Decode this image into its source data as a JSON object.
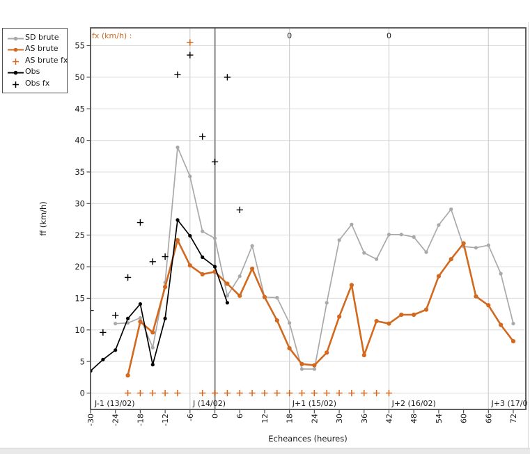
{
  "window": {
    "background": "#ffffff"
  },
  "chart_data": {
    "type": "line",
    "title": "",
    "xlabel": "Echeances (heures)",
    "ylabel": "ff (km/h)",
    "fx_header": "fx (km/h) :",
    "xlim": [
      -30,
      72
    ],
    "ylim": [
      0,
      55
    ],
    "x_ticks": [
      -30,
      -24,
      -18,
      -12,
      -6,
      0,
      6,
      12,
      18,
      24,
      30,
      36,
      42,
      48,
      54,
      60,
      66,
      72
    ],
    "y_ticks": [
      0,
      5,
      10,
      15,
      20,
      25,
      30,
      35,
      40,
      45,
      50,
      55
    ],
    "grid": "horizontal gridlines every 5; vertical separators at day boundaries; bold vertical line at 0",
    "now_line_x": 0,
    "day_separators": [
      -6,
      18,
      42,
      66
    ],
    "day_labels": [
      {
        "x": -29.0,
        "text": "J-1 (13/02)"
      },
      {
        "x": -5.3,
        "text": "J (14/02)"
      },
      {
        "x": 18.7,
        "text": "J+1 (15/02)"
      },
      {
        "x": 42.7,
        "text": "J+2 (16/02)"
      },
      {
        "x": 66.7,
        "text": "J+3 (17/0"
      }
    ],
    "annotations": [
      {
        "x": 18,
        "text": "0",
        "color": "#d2691e"
      },
      {
        "x": 42,
        "text": "0",
        "color": "#d2691e"
      }
    ],
    "series": [
      {
        "name": "SD brute",
        "type": "line-dot",
        "color": "#a9a9a9",
        "line_width": 1.7,
        "dot_radius": 2.6,
        "x": [
          -24,
          -21,
          -18,
          -15,
          -12,
          -9,
          -6,
          -3,
          0,
          3,
          6,
          9,
          12,
          15,
          18,
          21,
          24,
          27,
          30,
          33,
          36,
          39,
          42,
          45,
          48,
          51,
          54,
          57,
          60,
          63,
          66,
          69,
          72
        ],
        "y": [
          11.0,
          11.1,
          11.9,
          7.2,
          17.5,
          38.9,
          34.3,
          25.6,
          24.5,
          15.4,
          18.5,
          23.3,
          15.2,
          15.1,
          11.1,
          3.8,
          3.8,
          14.3,
          24.2,
          26.7,
          22.2,
          21.2,
          25.1,
          25.1,
          24.7,
          22.3,
          26.6,
          29.1,
          23.2,
          23.0,
          23.4,
          18.9,
          11.0
        ]
      },
      {
        "name": "AS brute",
        "type": "line-dot",
        "color": "#d2691e",
        "line_width": 2.6,
        "dot_radius": 3.1,
        "x": [
          -21,
          -18,
          -15,
          -12,
          -9,
          -6,
          -3,
          0,
          3,
          6,
          9,
          12,
          15,
          18,
          21,
          24,
          27,
          30,
          33,
          36,
          39,
          42,
          45,
          48,
          51,
          54,
          57,
          60,
          63,
          66,
          69,
          72
        ],
        "y": [
          2.8,
          11.3,
          9.6,
          16.8,
          24.2,
          20.2,
          18.8,
          19.2,
          17.3,
          15.4,
          19.7,
          15.2,
          11.5,
          7.1,
          4.6,
          4.4,
          6.4,
          12.1,
          17.1,
          6.0,
          11.4,
          11.0,
          12.4,
          12.4,
          13.2,
          18.5,
          21.2,
          23.7,
          15.3,
          13.9,
          10.8,
          8.2
        ]
      },
      {
        "name": "AS brute fx",
        "type": "plus",
        "color": "#d2691e",
        "plus_size": 4.6,
        "plus_width": 1.5,
        "x": [
          -21,
          -18,
          -15,
          -12,
          -9,
          -6,
          -3,
          0,
          3,
          6,
          9,
          12,
          15,
          18,
          21,
          24,
          27,
          30,
          33,
          36,
          39,
          42
        ],
        "y": [
          0,
          0,
          0,
          0,
          0,
          55.5,
          0,
          0,
          0,
          0,
          0,
          0,
          0,
          0,
          0,
          0,
          0,
          0,
          0,
          0,
          0,
          0
        ]
      },
      {
        "name": "Obs",
        "type": "line-dot",
        "color": "#000000",
        "line_width": 1.7,
        "dot_radius": 2.6,
        "x": [
          -30,
          -27,
          -24,
          -21,
          -18,
          -15,
          -12,
          -9,
          -6,
          -3,
          0,
          3
        ],
        "y": [
          3.5,
          5.3,
          6.8,
          11.8,
          14.1,
          4.5,
          11.8,
          27.4,
          24.9,
          21.5,
          20.0,
          14.3
        ]
      },
      {
        "name": "Obs fx",
        "type": "plus",
        "color": "#000000",
        "plus_size": 4.6,
        "plus_width": 1.4,
        "x": [
          -30,
          -27,
          -24,
          -21,
          -18,
          -15,
          -12,
          -9,
          -6,
          -3,
          0,
          3,
          6
        ],
        "y": [
          13.1,
          9.6,
          12.3,
          18.3,
          27.0,
          20.8,
          21.6,
          50.4,
          53.5,
          40.6,
          36.6,
          50.0,
          29.0
        ]
      }
    ],
    "legend_position": "top-left",
    "legend_entries": [
      {
        "label": "SD brute",
        "type": "line-dot",
        "color": "#a9a9a9"
      },
      {
        "label": "AS brute",
        "type": "line-dot",
        "color": "#d2691e"
      },
      {
        "label": "AS brute fx",
        "type": "plus",
        "color": "#d2691e"
      },
      {
        "label": "Obs",
        "type": "line-dot",
        "color": "#000000"
      },
      {
        "label": "Obs fx",
        "type": "plus",
        "color": "#000000"
      }
    ],
    "colors": {
      "grid": "#dcdcdc",
      "day_separator": "#d0d0d0",
      "now_line": "#9b9b9b",
      "box": "#4f4f4f",
      "text": "#1a1a1a",
      "accent_orange": "#d2691e",
      "series_gray": "#a9a9a9"
    }
  }
}
